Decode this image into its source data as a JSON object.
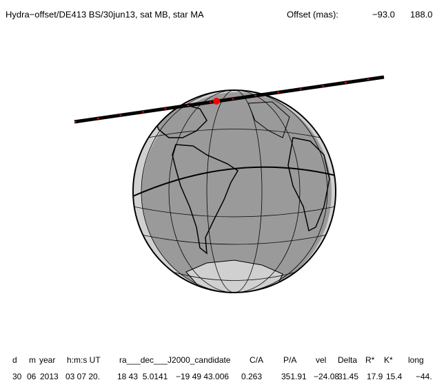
{
  "header": {
    "title": "Hydra−offset/DE413 BS/30jun13, sat MB, star MA",
    "offset_label": "Offset (mas):",
    "offset_values": [
      "−93.0",
      "188.0"
    ]
  },
  "table": {
    "headers": [
      "d",
      "m",
      "year",
      "h:m:s UT",
      "ra___dec___J2000_candidate",
      "C/A",
      "P/A",
      "vel",
      "Delta",
      "R*",
      "K*",
      "long"
    ],
    "row": [
      "30",
      "06",
      "2013",
      "03 07 20.",
      "18 43  5.0141",
      "−19 49 43.006",
      "0.263",
      "351.91",
      "−24.08",
      "31.45",
      "17.9",
      "15.4",
      "−44."
    ]
  }
}
